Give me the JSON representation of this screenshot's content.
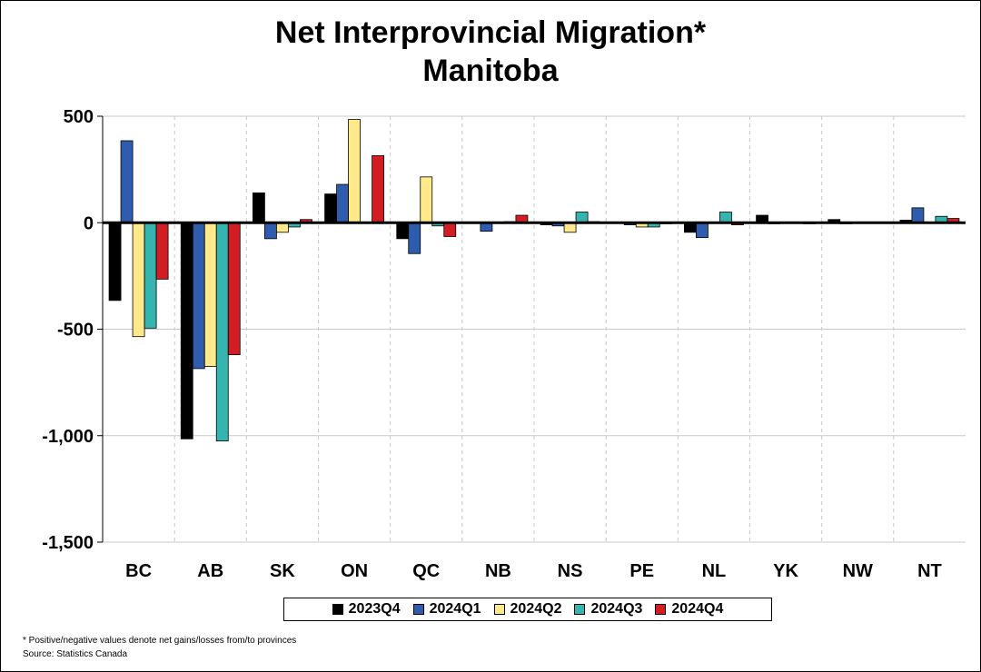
{
  "title_line1": "Net Interprovincial Migration*",
  "title_line2": "Manitoba",
  "footnote": "* Positive/negative values denote net gains/losses from/to provinces",
  "source": "Source: Statistics Canada",
  "chart_data": {
    "type": "bar",
    "categories": [
      "BC",
      "AB",
      "SK",
      "ON",
      "QC",
      "NB",
      "NS",
      "PE",
      "NL",
      "YK",
      "NW",
      "NT"
    ],
    "series": [
      {
        "name": "2023Q4",
        "color": "#000000",
        "values": [
          -365,
          -1015,
          140,
          135,
          -75,
          0,
          -10,
          0,
          -45,
          35,
          15,
          12
        ]
      },
      {
        "name": "2024Q1",
        "color": "#2F5CAD",
        "values": [
          385,
          -685,
          -75,
          180,
          -145,
          -40,
          -15,
          -10,
          -70,
          -5,
          -5,
          70
        ]
      },
      {
        "name": "2024Q2",
        "color": "#FFE98A",
        "values": [
          -535,
          -675,
          -45,
          485,
          215,
          0,
          -45,
          -20,
          0,
          0,
          0,
          0
        ]
      },
      {
        "name": "2024Q3",
        "color": "#36B5B0",
        "values": [
          -495,
          -1025,
          -20,
          0,
          -15,
          5,
          50,
          -20,
          50,
          0,
          0,
          30
        ]
      },
      {
        "name": "2024Q4",
        "color": "#D21E22",
        "values": [
          -265,
          -620,
          15,
          315,
          -65,
          35,
          5,
          -5,
          -10,
          -5,
          0,
          20
        ]
      }
    ],
    "ylim": [
      -1500,
      500
    ],
    "yticks": [
      500,
      0,
      -500,
      -1000,
      -1500
    ],
    "ytick_labels": [
      "500",
      "0",
      "-500",
      "-1,000",
      "-1,500"
    ],
    "xlabel": "",
    "ylabel": "",
    "grid": true,
    "legend_position": "bottom"
  }
}
